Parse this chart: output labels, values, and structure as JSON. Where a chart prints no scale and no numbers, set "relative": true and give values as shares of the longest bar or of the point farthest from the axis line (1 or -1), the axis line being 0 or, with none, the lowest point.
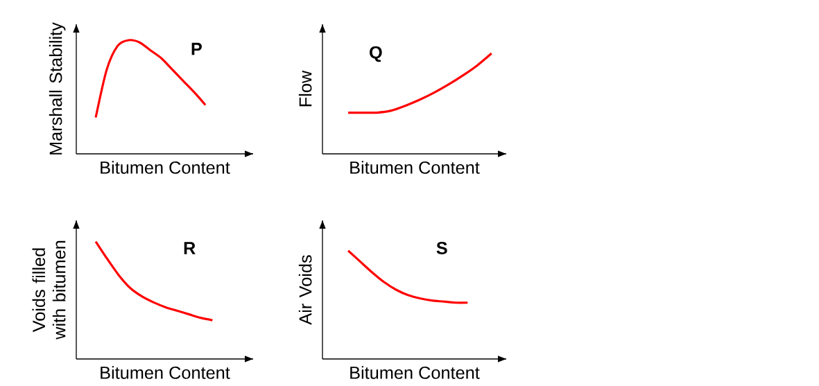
{
  "chart_data": [
    {
      "type": "line",
      "relative": true,
      "xlabel": "Bitumen Content",
      "ylabel": "Marshall Stability",
      "annotations": [
        "P"
      ],
      "color": "#ff0000",
      "categories": [
        null,
        null,
        null,
        null,
        null,
        null,
        null,
        null,
        null,
        null,
        null
      ],
      "values": [
        0.32,
        0.74,
        0.95,
        1,
        0.98,
        0.91,
        0.84,
        0.74,
        0.64,
        0.54,
        0.43
      ]
    },
    {
      "type": "line",
      "relative": true,
      "xlabel": "Bitumen Content",
      "ylabel": "Flow",
      "annotations": [
        "Q"
      ],
      "color": "#ff0000",
      "categories": [
        null,
        null,
        null,
        null,
        null,
        null,
        null,
        null,
        null,
        null,
        null
      ],
      "values": [
        0.41,
        0.41,
        0.41,
        0.43,
        0.48,
        0.54,
        0.61,
        0.69,
        0.78,
        0.88,
        1
      ]
    },
    {
      "type": "line",
      "relative": true,
      "xlabel": "Bitumen Content",
      "ylabel": "Voids filled with bitumen",
      "annotations": [
        "R"
      ],
      "color": "#ff0000",
      "categories": [
        null,
        null,
        null,
        null,
        null,
        null,
        null,
        null,
        null,
        null,
        null
      ],
      "values": [
        1,
        0.85,
        0.71,
        0.6,
        0.53,
        0.48,
        0.44,
        0.41,
        0.38,
        0.35,
        0.33
      ]
    },
    {
      "type": "line",
      "relative": true,
      "xlabel": "Bitumen Content",
      "ylabel": "Air Voids",
      "annotations": [
        "S"
      ],
      "color": "#ff0000",
      "categories": [
        null,
        null,
        null,
        null,
        null,
        null,
        null,
        null,
        null,
        null,
        null
      ],
      "values": [
        1,
        0.9,
        0.8,
        0.71,
        0.64,
        0.59,
        0.56,
        0.54,
        0.53,
        0.52,
        0.52
      ]
    }
  ]
}
